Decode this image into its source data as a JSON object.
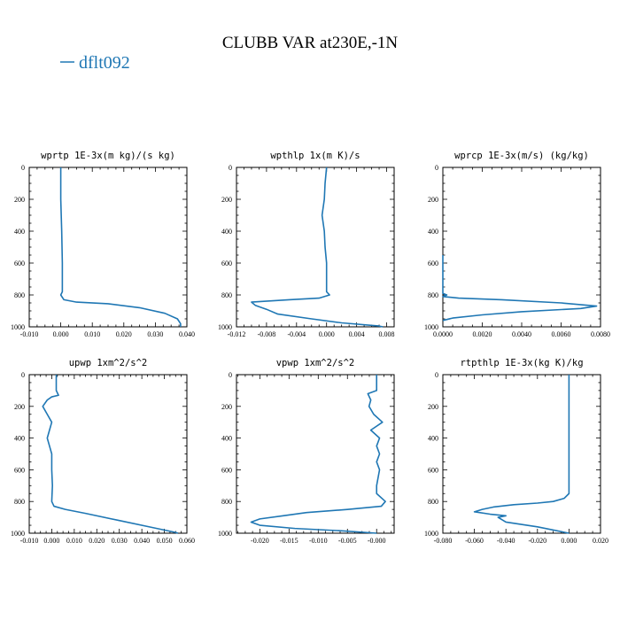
{
  "figure": {
    "title": "CLUBB VAR at230E,-1N",
    "legend": [
      {
        "label": "dflt092",
        "color": "#1f77b4"
      }
    ]
  },
  "chart_data": [
    {
      "type": "line",
      "title": "wprtp  1E-3x(m kg)/(s kg)",
      "xlim": [
        -0.01,
        0.04
      ],
      "xticks": [
        "-0.010",
        "0.000",
        "0.010",
        "0.020",
        "0.030",
        "0.040"
      ],
      "ylim": [
        1000,
        0
      ],
      "yticks": [
        "0",
        "200",
        "400",
        "600",
        "800",
        "1000"
      ],
      "series": [
        {
          "color": "#1f77b4",
          "points": [
            [
              0.0,
              0
            ],
            [
              0.0,
              200
            ],
            [
              0.0003,
              400
            ],
            [
              0.0005,
              600
            ],
            [
              0.0005,
              780
            ],
            [
              0.0,
              800
            ],
            [
              0.001,
              830
            ],
            [
              0.005,
              845
            ],
            [
              0.015,
              855
            ],
            [
              0.025,
              880
            ],
            [
              0.033,
              915
            ],
            [
              0.037,
              950
            ],
            [
              0.038,
              980
            ],
            [
              0.038,
              1000
            ]
          ]
        }
      ]
    },
    {
      "type": "line",
      "title": "wpthlp  1x(m K)/s",
      "xlim": [
        -0.012,
        0.009
      ],
      "xticks": [
        "-0.012",
        "-0.008",
        "-0.004",
        "0.000",
        "0.004",
        "0.008"
      ],
      "ylim": [
        1000,
        0
      ],
      "yticks": [
        "0",
        "200",
        "400",
        "600",
        "800",
        "1000"
      ],
      "series": [
        {
          "color": "#1f77b4",
          "points": [
            [
              0.0,
              0
            ],
            [
              -0.0002,
              100
            ],
            [
              -0.0003,
              200
            ],
            [
              -0.0006,
              300
            ],
            [
              -0.0003,
              400
            ],
            [
              -0.0002,
              500
            ],
            [
              0.0,
              600
            ],
            [
              0.0,
              700
            ],
            [
              0.0,
              780
            ],
            [
              0.0004,
              800
            ],
            [
              -0.001,
              820
            ],
            [
              -0.005,
              830
            ],
            [
              -0.01,
              845
            ],
            [
              -0.0095,
              865
            ],
            [
              -0.008,
              890
            ],
            [
              -0.0065,
              920
            ],
            [
              -0.002,
              950
            ],
            [
              0.002,
              975
            ],
            [
              0.007,
              995
            ],
            [
              0.0075,
              1000
            ]
          ]
        }
      ]
    },
    {
      "type": "line",
      "title": "wprcp  1E-3x(m/s) (kg/kg)",
      "xlim": [
        0.0,
        0.008
      ],
      "xticks": [
        "0.0000",
        "0.0020",
        "0.0040",
        "0.0060",
        "0.0080"
      ],
      "ylim": [
        1000,
        0
      ],
      "yticks": [
        "0",
        "200",
        "400",
        "600",
        "800",
        "1000"
      ],
      "series": [
        {
          "color": "#1f77b4",
          "points": [
            [
              0.0,
              550
            ],
            [
              0.0,
              790
            ],
            [
              0.0002,
              800
            ],
            [
              0.0,
              810
            ],
            [
              0.0008,
              820
            ],
            [
              0.003,
              830
            ],
            [
              0.006,
              850
            ],
            [
              0.0078,
              870
            ],
            [
              0.007,
              885
            ],
            [
              0.004,
              905
            ],
            [
              0.002,
              925
            ],
            [
              0.0005,
              945
            ],
            [
              0.0,
              960
            ]
          ]
        }
      ]
    },
    {
      "type": "line",
      "title": "upwp  1xm^2/s^2",
      "xlim": [
        -0.01,
        0.06
      ],
      "xticks": [
        "-0.010",
        "0.000",
        "0.010",
        "0.020",
        "0.030",
        "0.040",
        "0.050",
        "0.060"
      ],
      "ylim": [
        1000,
        0
      ],
      "yticks": [
        "0",
        "200",
        "400",
        "600",
        "800",
        "1000"
      ],
      "series": [
        {
          "color": "#1f77b4",
          "points": [
            [
              0.002,
              0
            ],
            [
              0.002,
              100
            ],
            [
              0.003,
              130
            ],
            [
              0.0,
              140
            ],
            [
              -0.002,
              160
            ],
            [
              -0.004,
              200
            ],
            [
              -0.002,
              250
            ],
            [
              0.0,
              300
            ],
            [
              -0.001,
              350
            ],
            [
              -0.002,
              400
            ],
            [
              -0.001,
              450
            ],
            [
              0.0,
              500
            ],
            [
              0.0,
              600
            ],
            [
              0.0003,
              700
            ],
            [
              0.0,
              800
            ],
            [
              0.001,
              830
            ],
            [
              0.006,
              850
            ],
            [
              0.015,
              875
            ],
            [
              0.03,
              920
            ],
            [
              0.045,
              965
            ],
            [
              0.055,
              995
            ],
            [
              0.056,
              1000
            ]
          ]
        }
      ]
    },
    {
      "type": "line",
      "title": "vpwp  1xm^2/s^2",
      "xlim": [
        -0.024,
        0.003
      ],
      "xticks": [
        "-0.020",
        "-0.015",
        "-0.010",
        "-0.005",
        "-0.000"
      ],
      "ylim": [
        1000,
        0
      ],
      "yticks": [
        "0",
        "200",
        "400",
        "600",
        "800",
        "1000"
      ],
      "series": [
        {
          "color": "#1f77b4",
          "points": [
            [
              0.0,
              0
            ],
            [
              0.0,
              100
            ],
            [
              -0.0015,
              120
            ],
            [
              -0.001,
              160
            ],
            [
              -0.0013,
              200
            ],
            [
              -0.0005,
              250
            ],
            [
              0.001,
              300
            ],
            [
              -0.001,
              350
            ],
            [
              0.0005,
              400
            ],
            [
              0.0,
              450
            ],
            [
              0.0005,
              500
            ],
            [
              0.0,
              550
            ],
            [
              0.0005,
              600
            ],
            [
              0.0,
              700
            ],
            [
              0.0,
              750
            ],
            [
              0.0015,
              800
            ],
            [
              0.0008,
              830
            ],
            [
              -0.005,
              850
            ],
            [
              -0.012,
              870
            ],
            [
              -0.016,
              890
            ],
            [
              -0.02,
              910
            ],
            [
              -0.0215,
              930
            ],
            [
              -0.02,
              950
            ],
            [
              -0.014,
              970
            ],
            [
              -0.006,
              985
            ],
            [
              0.0,
              1000
            ]
          ]
        }
      ]
    },
    {
      "type": "line",
      "title": "rtpthlp  1E-3x(kg K)/kg",
      "xlim": [
        -0.08,
        0.02
      ],
      "xticks": [
        "-0.080",
        "-0.060",
        "-0.040",
        "-0.020",
        "0.000",
        "0.020"
      ],
      "ylim": [
        1000,
        0
      ],
      "yticks": [
        "0",
        "200",
        "400",
        "600",
        "800",
        "1000"
      ],
      "series": [
        {
          "color": "#1f77b4",
          "points": [
            [
              0.0,
              0
            ],
            [
              0.0,
              200
            ],
            [
              0.0,
              400
            ],
            [
              0.0,
              600
            ],
            [
              0.0,
              750
            ],
            [
              -0.003,
              780
            ],
            [
              -0.01,
              800
            ],
            [
              -0.02,
              810
            ],
            [
              -0.035,
              820
            ],
            [
              -0.048,
              835
            ],
            [
              -0.055,
              850
            ],
            [
              -0.06,
              865
            ],
            [
              -0.05,
              880
            ],
            [
              -0.04,
              890
            ],
            [
              -0.045,
              900
            ],
            [
              -0.04,
              930
            ],
            [
              -0.02,
              960
            ],
            [
              0.0,
              1000
            ]
          ]
        }
      ]
    }
  ]
}
